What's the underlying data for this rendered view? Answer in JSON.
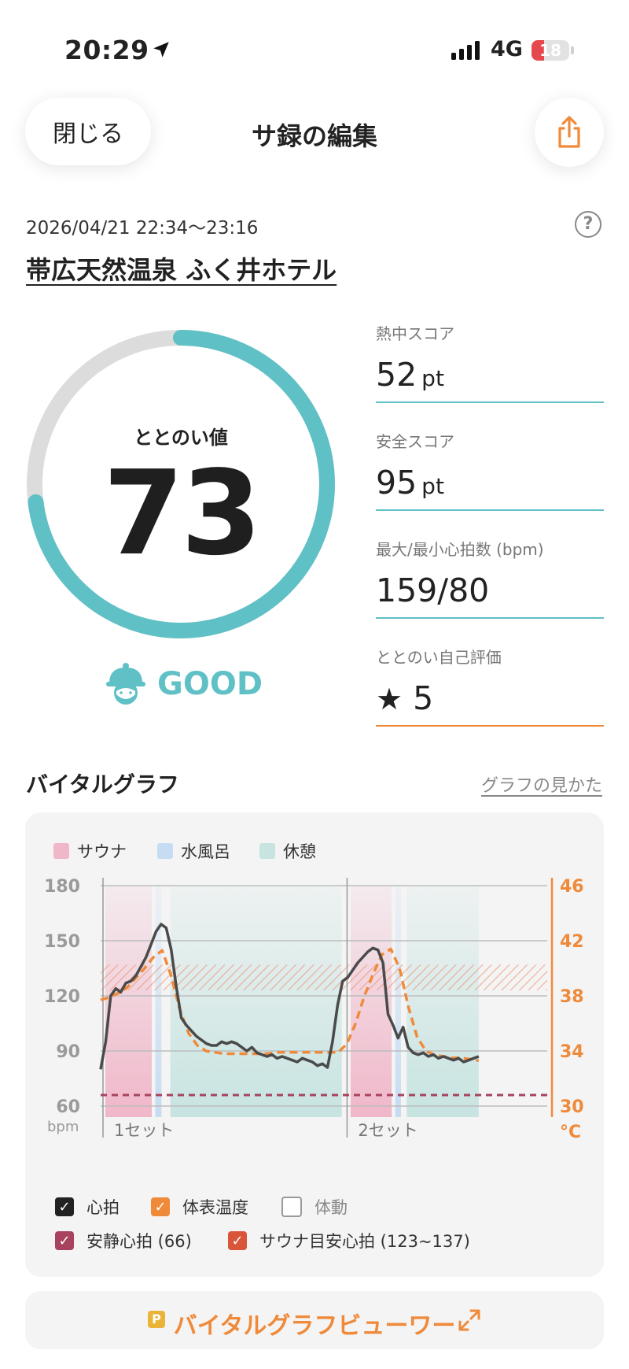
{
  "status_bar": {
    "time": "20:29",
    "network": "4G",
    "battery": "18"
  },
  "header": {
    "close_label": "閉じる",
    "title": "サ録の編集"
  },
  "session": {
    "datetime": "2026/04/21 22:34〜23:16",
    "facility": "帯広天然温泉 ふく井ホテル"
  },
  "gauge": {
    "label": "ととのい値",
    "value": "73",
    "progress": 0.73,
    "rating": "GOOD"
  },
  "scores": [
    {
      "label": "熱中スコア",
      "value": "52",
      "unit": "pt"
    },
    {
      "label": "安全スコア",
      "value": "95",
      "unit": "pt"
    },
    {
      "label": "最大/最小心拍数 (bpm)",
      "value": "159/80",
      "unit": ""
    },
    {
      "label": "ととのい自己評価",
      "value": "5",
      "unit": ""
    }
  ],
  "vital": {
    "title": "バイタルグラフ",
    "howto_link": "グラフの見かた",
    "phase_legend": [
      "サウナ",
      "水風呂",
      "休憩"
    ],
    "set_labels": [
      "1セット",
      "2セット"
    ],
    "checks": [
      {
        "label": "心拍",
        "checked": true
      },
      {
        "label": "体表温度",
        "checked": true
      },
      {
        "label": "体動",
        "checked": false
      },
      {
        "label": "安静心拍 (66)",
        "checked": true
      },
      {
        "label": "サウナ目安心拍 (123~137)",
        "checked": true
      }
    ],
    "viewer_label": "バイタルグラフビューワー"
  },
  "colors": {
    "accent_teal": "#5fc0c6",
    "accent_orange": "#ef8a3a",
    "sauna": "#f0b7c9",
    "cold_bath": "#c6dcf3",
    "rest": "#c7e4e1",
    "heart_rate": "#4a4a4a",
    "resting_line": "#a8435f"
  },
  "chart_data": {
    "type": "line",
    "xlabel": "",
    "ylabel": "bpm",
    "y2label": "°C",
    "ylim": [
      60,
      180
    ],
    "yticks": [
      60,
      90,
      120,
      150,
      180
    ],
    "y2lim": [
      30,
      46
    ],
    "y2ticks": [
      30,
      34,
      38,
      42,
      46
    ],
    "sets": [
      "1セット",
      "2セット"
    ],
    "phases": [
      {
        "type": "sauna",
        "set": 1
      },
      {
        "type": "cold_bath",
        "set": 1
      },
      {
        "type": "rest",
        "set": 1
      },
      {
        "type": "sauna",
        "set": 2
      },
      {
        "type": "cold_bath",
        "set": 2
      },
      {
        "type": "rest",
        "set": 2
      }
    ],
    "resting_hr": 66,
    "sauna_target_range": [
      123,
      137
    ],
    "series": [
      {
        "name": "心拍",
        "axis": "left",
        "values": [
          80,
          95,
          120,
          124,
          122,
          127,
          128,
          131,
          136,
          141,
          148,
          155,
          159,
          157,
          145,
          125,
          108,
          104,
          101,
          98,
          96,
          94,
          93,
          93,
          95,
          94,
          95,
          94,
          92,
          90,
          92,
          89,
          88,
          87,
          88,
          86,
          87,
          86,
          85,
          84,
          86,
          85,
          84,
          82,
          83,
          81,
          95,
          115,
          128,
          130,
          134,
          138,
          141,
          144,
          146,
          145,
          138,
          110,
          104,
          97,
          103,
          92,
          89,
          88,
          89,
          87,
          88,
          86,
          87,
          86,
          85,
          86,
          84,
          85,
          86,
          87
        ]
      },
      {
        "name": "体表温度",
        "axis": "right",
        "values": [
          37.7,
          37.9,
          38.2,
          38.6,
          39.3,
          40.0,
          40.8,
          41.3,
          39.5,
          37.0,
          35.3,
          34.4,
          34.0,
          33.9,
          33.8,
          33.8,
          33.8,
          33.8,
          33.8,
          33.8,
          33.9,
          33.9,
          33.9,
          33.9,
          33.9,
          33.9,
          33.9,
          33.9,
          34.5,
          36.0,
          38.0,
          39.6,
          41.0,
          41.4,
          40.0,
          37.2,
          35.0,
          34.0,
          33.7,
          33.6,
          33.5,
          33.5,
          33.4,
          33.3
        ]
      }
    ]
  }
}
